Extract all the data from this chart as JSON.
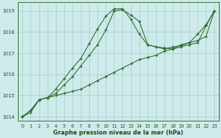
{
  "x": [
    0,
    1,
    2,
    3,
    4,
    5,
    6,
    7,
    8,
    9,
    10,
    11,
    12,
    13,
    14,
    15,
    16,
    17,
    18,
    19,
    20,
    21,
    22,
    23
  ],
  "line1": [
    1014.0,
    1014.2,
    1014.8,
    1014.9,
    1015.0,
    1015.1,
    1015.2,
    1015.3,
    1015.5,
    1015.7,
    1015.9,
    1016.1,
    1016.3,
    1016.5,
    1016.7,
    1016.8,
    1016.9,
    1017.1,
    1017.2,
    1017.4,
    1017.5,
    1017.6,
    1017.8,
    1019.0
  ],
  "line2": [
    1014.0,
    1014.3,
    1014.8,
    1014.9,
    1015.1,
    1015.5,
    1015.9,
    1016.4,
    1016.9,
    1017.4,
    1018.1,
    1019.0,
    1019.05,
    1018.8,
    1018.5,
    1017.4,
    1017.3,
    1017.25,
    1017.2,
    1017.3,
    1017.4,
    1017.5,
    1018.3,
    1019.0
  ],
  "line3": [
    1014.0,
    1014.3,
    1014.8,
    1014.9,
    1015.3,
    1015.8,
    1016.3,
    1016.75,
    1017.45,
    1018.15,
    1018.75,
    1019.1,
    1019.1,
    1018.6,
    1017.9,
    1017.4,
    1017.3,
    1017.2,
    1017.3,
    1017.35,
    1017.5,
    1017.9,
    1018.35,
    1019.0
  ],
  "ylim": [
    1013.8,
    1019.4
  ],
  "yticks": [
    1014,
    1015,
    1016,
    1017,
    1018,
    1019
  ],
  "xlabel": "Graphe pression niveau de la mer (hPa)",
  "line_color": "#2d6a2d",
  "bg_color": "#ceeaea",
  "grid_color": "#a0cccc",
  "label_color": "#1a4d1a"
}
